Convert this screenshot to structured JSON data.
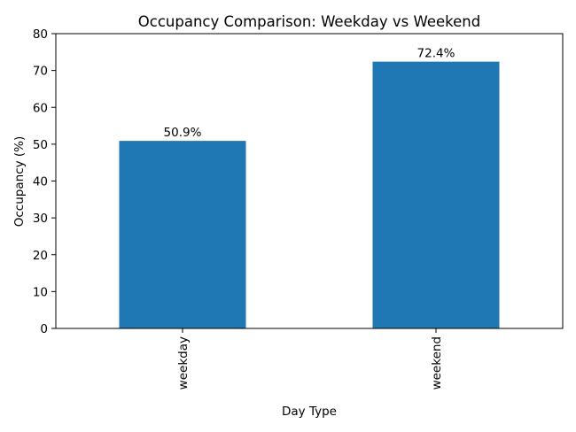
{
  "chart_data": {
    "type": "bar",
    "title": "Occupancy Comparison: Weekday vs Weekend",
    "xlabel": "Day Type",
    "ylabel": "Occupancy (%)",
    "categories": [
      "weekday",
      "weekend"
    ],
    "values": [
      50.9,
      72.4
    ],
    "data_labels": [
      "50.9%",
      "72.4%"
    ],
    "ylim": [
      0,
      80
    ],
    "yticks": [
      0,
      10,
      20,
      30,
      40,
      50,
      60,
      70,
      80
    ],
    "bar_color": "#1f77b4",
    "grid": false,
    "xtick_rotation": "vertical"
  }
}
